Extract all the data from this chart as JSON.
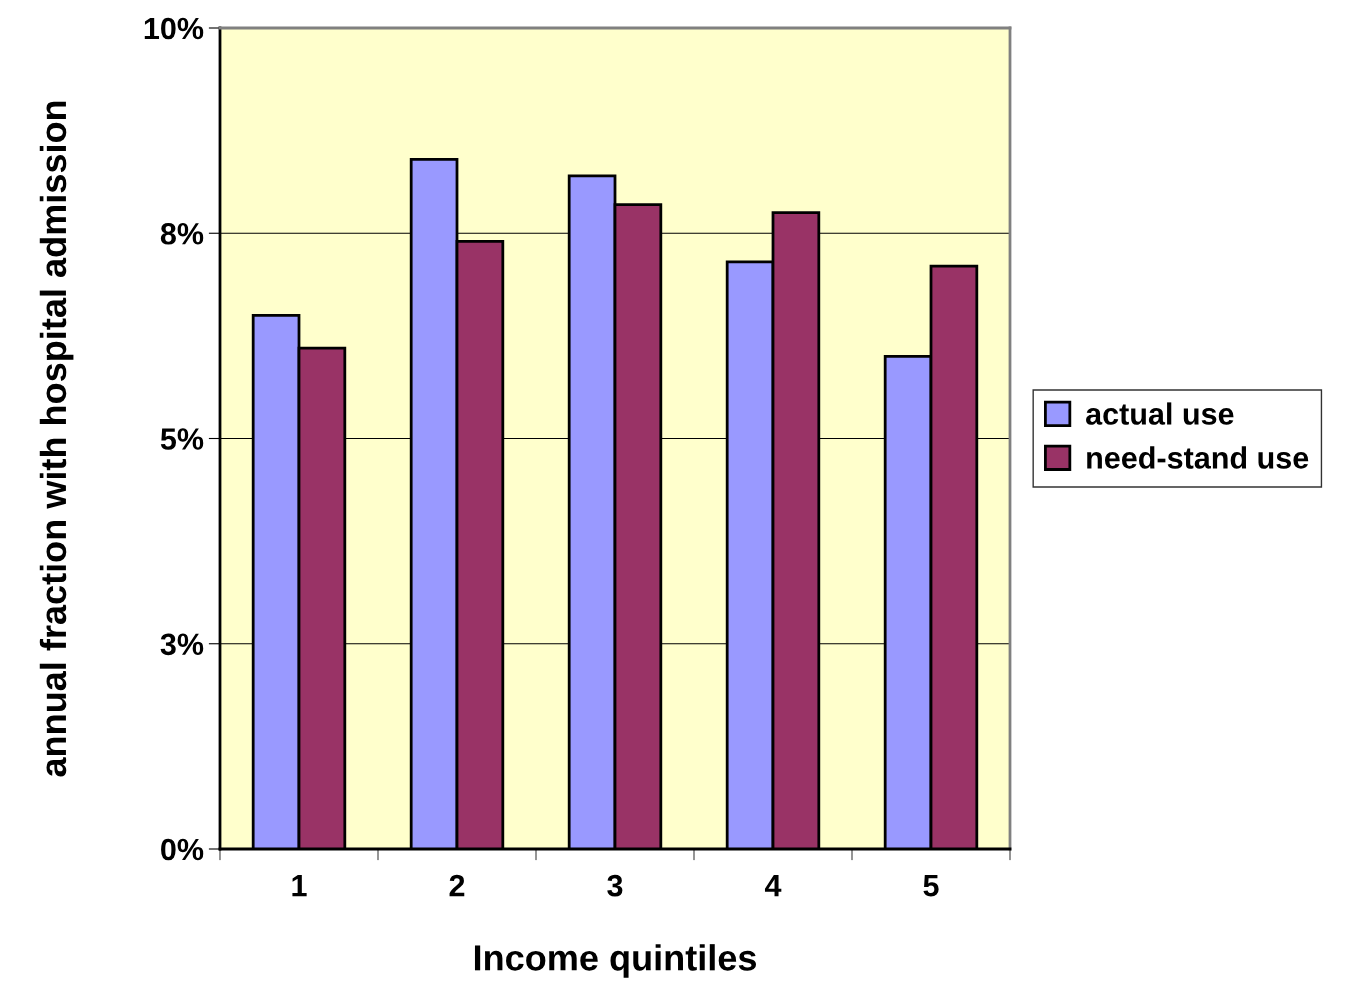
{
  "chart_data": {
    "type": "bar",
    "xlabel": "Income quintiles",
    "ylabel": "annual fraction with hospital admission",
    "categories": [
      "1",
      "2",
      "3",
      "4",
      "5"
    ],
    "series": [
      {
        "name": "actual use",
        "color": "#9999ff",
        "values": [
          6.5,
          8.4,
          8.2,
          7.15,
          6.0
        ]
      },
      {
        "name": "need-stand use",
        "color": "#993366",
        "values": [
          6.1,
          7.4,
          7.85,
          7.75,
          7.1
        ]
      }
    ],
    "ylim": [
      0,
      10
    ],
    "yticks": [
      {
        "value": 0,
        "label": "0%"
      },
      {
        "value": 2.5,
        "label": "3%"
      },
      {
        "value": 5,
        "label": "5%"
      },
      {
        "value": 7.5,
        "label": "8%"
      },
      {
        "value": 10,
        "label": "10%"
      }
    ],
    "grid": "y",
    "legend": "right"
  }
}
